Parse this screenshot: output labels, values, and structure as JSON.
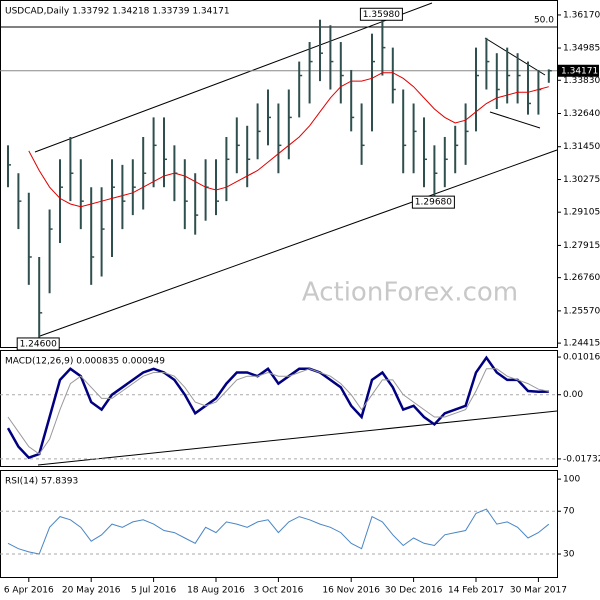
{
  "chart_data": [
    {
      "type": "ohlc",
      "title": "USDCAD,Daily 1.33792 1.34218 1.33739 1.34171",
      "watermark": "ActionForex.com",
      "categories": [
        null,
        null,
        "6 Apr 2016",
        null,
        null,
        null,
        null,
        null,
        "20 May 2016",
        null,
        null,
        null,
        null,
        null,
        "5 Jul 2016",
        null,
        null,
        null,
        null,
        null,
        "18 Aug 2016",
        null,
        null,
        null,
        null,
        null,
        "3 Oct 2016",
        null,
        null,
        null,
        null,
        null,
        null,
        "16 Nov 2016",
        null,
        null,
        null,
        null,
        null,
        "30 Dec 2016",
        null,
        null,
        null,
        null,
        null,
        "14 Feb 2017",
        null,
        null,
        null,
        null,
        null,
        "30 Mar 2017",
        null
      ],
      "high": [
        1.315,
        1.305,
        1.298,
        1.275,
        1.292,
        1.31,
        1.318,
        1.31,
        1.3,
        1.3,
        1.31,
        1.308,
        1.31,
        1.318,
        1.325,
        1.325,
        1.315,
        1.31,
        1.305,
        1.31,
        1.31,
        1.318,
        1.325,
        1.322,
        1.33,
        1.335,
        1.33,
        1.335,
        1.345,
        1.352,
        1.36,
        1.358,
        1.352,
        1.342,
        1.33,
        1.355,
        1.3598,
        1.35,
        1.335,
        1.33,
        1.325,
        1.315,
        1.318,
        1.322,
        1.33,
        1.35,
        1.3535,
        1.348,
        1.35,
        1.348,
        1.345,
        1.342,
        1.3422
      ],
      "low": [
        1.3,
        1.285,
        1.265,
        1.246,
        1.262,
        1.28,
        1.295,
        1.285,
        1.265,
        1.268,
        1.275,
        1.285,
        1.29,
        1.292,
        1.3,
        1.3,
        1.295,
        1.285,
        1.283,
        1.288,
        1.29,
        1.295,
        1.305,
        1.3,
        1.31,
        1.315,
        1.305,
        1.31,
        1.325,
        1.33,
        1.338,
        1.335,
        1.33,
        1.32,
        1.308,
        1.32,
        1.34,
        1.33,
        1.305,
        1.305,
        1.3,
        1.2968,
        1.3,
        1.305,
        1.308,
        1.32,
        1.335,
        1.328,
        1.33,
        1.33,
        1.326,
        1.326,
        1.3374
      ],
      "close": [
        1.308,
        1.295,
        1.275,
        1.255,
        1.285,
        1.3,
        1.305,
        1.295,
        1.275,
        1.285,
        1.3,
        1.295,
        1.3,
        1.305,
        1.315,
        1.31,
        1.305,
        1.295,
        1.29,
        1.3,
        1.295,
        1.31,
        1.315,
        1.31,
        1.32,
        1.325,
        1.315,
        1.325,
        1.34,
        1.345,
        1.348,
        1.345,
        1.34,
        1.325,
        1.315,
        1.345,
        1.35,
        1.335,
        1.315,
        1.32,
        1.31,
        1.305,
        1.31,
        1.315,
        1.32,
        1.34,
        1.345,
        1.335,
        1.34,
        1.34,
        1.33,
        1.335,
        1.34171
      ],
      "color": "#2f4f4f",
      "moving_average": {
        "color": "#e00000",
        "values": [
          null,
          null,
          1.313,
          1.306,
          1.3,
          1.296,
          1.294,
          1.293,
          1.294,
          1.295,
          1.296,
          1.297,
          1.298,
          1.3,
          1.302,
          1.304,
          1.305,
          1.304,
          1.302,
          1.3,
          1.299,
          1.3,
          1.302,
          1.304,
          1.306,
          1.309,
          1.312,
          1.315,
          1.318,
          1.322,
          1.327,
          1.332,
          1.336,
          1.338,
          1.338,
          1.339,
          1.341,
          1.341,
          1.339,
          1.336,
          1.332,
          1.328,
          1.325,
          1.323,
          1.324,
          1.327,
          1.33,
          1.332,
          1.333,
          1.334,
          1.334,
          1.335,
          1.336
        ]
      },
      "ylim": [
        1.2424,
        1.3667
      ],
      "yticks": [
        {
          "value": 1.3617,
          "label": "1.36170"
        },
        {
          "value": 1.34985,
          "label": "1.34985"
        },
        {
          "value": 1.3383,
          "label": "1.33830"
        },
        {
          "value": 1.3264,
          "label": "1.32640"
        },
        {
          "value": 1.3145,
          "label": "1.31450"
        },
        {
          "value": 1.30275,
          "label": "1.30275"
        },
        {
          "value": 1.29105,
          "label": "1.29105"
        },
        {
          "value": 1.27915,
          "label": "1.27915"
        },
        {
          "value": 1.2676,
          "label": "1.26760"
        },
        {
          "value": 1.2557,
          "label": "1.25570"
        },
        {
          "value": 1.24415,
          "label": "1.24415"
        }
      ],
      "last_price": 1.34171,
      "fib_level": {
        "value": 1.3574,
        "label": "50.0"
      },
      "annotations": [
        {
          "index": 36,
          "value": 1.3598,
          "label": "1.35980"
        },
        {
          "index": 41,
          "value": 1.2968,
          "label": "1.29680"
        },
        {
          "index": 3,
          "value": 1.246,
          "label": "1.24600"
        }
      ]
    },
    {
      "type": "line",
      "title": "MACD(12,26,9) 0.000835 0.000949",
      "series": [
        {
          "color": "#000080",
          "values": [
            -0.009,
            -0.014,
            -0.017,
            -0.016,
            -0.006,
            0.004,
            0.007,
            0.005,
            -0.002,
            -0.004,
            0.0,
            0.002,
            0.004,
            0.006,
            0.007,
            0.006,
            0.004,
            0.0,
            -0.005,
            -0.003,
            -0.001,
            0.003,
            0.006,
            0.006,
            0.005,
            0.007,
            0.003,
            0.005,
            0.007,
            0.007,
            0.006,
            0.004,
            0.002,
            -0.003,
            -0.006,
            0.004,
            0.006,
            0.002,
            -0.004,
            -0.003,
            -0.006,
            -0.008,
            -0.005,
            -0.004,
            -0.003,
            0.006,
            0.01,
            0.006,
            0.004,
            0.004,
            0.001,
            0.0008,
            0.000835
          ]
        },
        {
          "color": "#999999",
          "values": [
            -0.006,
            -0.01,
            -0.014,
            -0.016,
            -0.012,
            -0.004,
            0.003,
            0.005,
            0.002,
            -0.001,
            -0.001,
            0.001,
            0.003,
            0.005,
            0.006,
            0.006,
            0.005,
            0.002,
            -0.002,
            -0.003,
            -0.002,
            0.001,
            0.004,
            0.005,
            0.005,
            0.006,
            0.005,
            0.005,
            0.006,
            0.007,
            0.006,
            0.005,
            0.003,
            0.0,
            -0.004,
            0.0,
            0.004,
            0.004,
            0.0,
            -0.002,
            -0.004,
            -0.006,
            -0.006,
            -0.005,
            -0.004,
            0.001,
            0.007,
            0.007,
            0.005,
            0.004,
            0.003,
            0.0015,
            0.000949
          ]
        }
      ],
      "ylim": [
        -0.0195,
        0.0118
      ],
      "yticks": [
        0.010163,
        {
          "value": 0,
          "label": "0.00"
        },
        -0.017321
      ]
    },
    {
      "type": "line",
      "title": "RSI(14) 57.8393",
      "series": [
        {
          "color": "#4a86c5",
          "values": [
            40,
            35,
            32,
            30,
            55,
            65,
            62,
            55,
            42,
            48,
            58,
            55,
            60,
            62,
            58,
            52,
            50,
            45,
            40,
            55,
            50,
            60,
            58,
            55,
            60,
            62,
            50,
            60,
            65,
            62,
            58,
            55,
            50,
            40,
            35,
            65,
            60,
            48,
            38,
            45,
            40,
            38,
            48,
            50,
            52,
            68,
            72,
            58,
            60,
            55,
            45,
            50,
            57.8393
          ]
        }
      ],
      "ylim": [
        7.6,
        107.6
      ],
      "yticks": [
        100,
        70,
        30
      ]
    }
  ]
}
